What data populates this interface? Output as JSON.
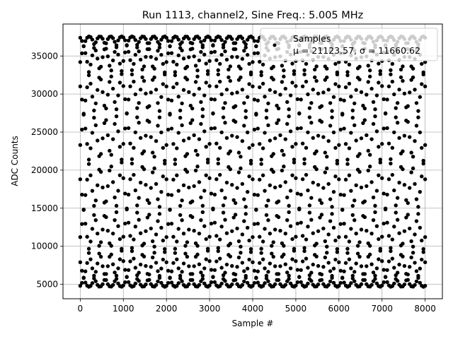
{
  "chart_data": {
    "type": "scatter",
    "title": "Run 1113, channel2, Sine Freq.: 5.005 MHz",
    "xlabel": "Sample #",
    "ylabel": "ADC Counts",
    "xlim": [
      -400,
      8400
    ],
    "ylim": [
      3100,
      39200
    ],
    "x_ticks": [
      0,
      1000,
      2000,
      3000,
      4000,
      5000,
      6000,
      7000,
      8000
    ],
    "y_ticks": [
      5000,
      10000,
      15000,
      20000,
      25000,
      30000,
      35000
    ],
    "x_tick_labels": [
      "0",
      "1000",
      "2000",
      "3000",
      "4000",
      "5000",
      "6000",
      "7000",
      "8000"
    ],
    "y_tick_labels": [
      "5000",
      "10000",
      "15000",
      "20000",
      "25000",
      "30000",
      "35000"
    ],
    "grid": true,
    "legend_position": "top-right",
    "series": [
      {
        "name": "Samples",
        "color": "#000000",
        "stats_label": "μ = 21123.57, σ = 11660.62",
        "x_range": [
          0,
          8000
        ],
        "mean": 21123.57,
        "amplitude": 16450,
        "period_samples": 2000,
        "start_values": [
          4800,
          7900,
          11200,
          18800,
          23300,
          31000,
          34200,
          37400
        ]
      }
    ]
  }
}
